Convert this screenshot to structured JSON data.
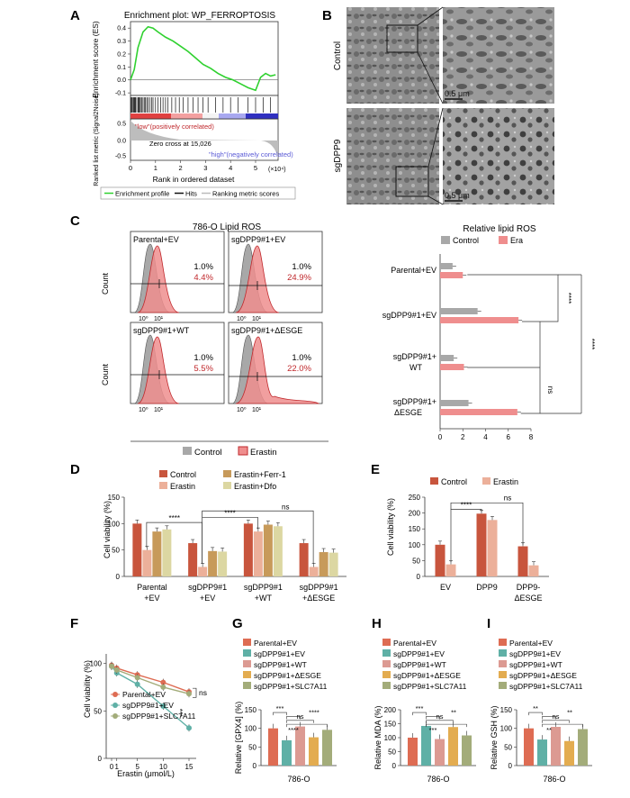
{
  "colors": {
    "control": "#c8553d",
    "erastin": "#ecb09a",
    "ferr1": "#c79a5a",
    "dfo": "#dcd7a2",
    "gray": "#a8a8a8",
    "era": "#ef8e8e",
    "parental": "#de6c53",
    "sgEV": "#5fb0a6",
    "sgWT": "#dc9a92",
    "sgDESGE": "#e3ac50",
    "sgSLC": "#a3ac7a",
    "green": "#2fd12f",
    "red": "#c0282c",
    "blue": "#5b5bd6"
  },
  "panels": {
    "A": "A",
    "B": "B",
    "C": "C",
    "D": "D",
    "E": "E",
    "F": "F",
    "G": "G",
    "H": "H",
    "I": "I"
  },
  "A": {
    "title": "Enrichment plot: WP_FERROPTOSIS",
    "ylabel": "Enrichment score (ES)",
    "metric_label": "Ranked list metric (Signal2Noise)",
    "xlabel": "Rank in ordered dataset",
    "x_multiplier": "(×10⁴)",
    "pos_label": "\"low\"(positively correlated)",
    "neg_label": "\"high\"(negatively correlated)",
    "zero_cross": "Zero cross at 15,026",
    "legend": [
      "Enrichment profile",
      "Hits",
      "Ranking metric scores"
    ],
    "yticks": [
      "0.4",
      "0.3",
      "0.2",
      "0.1",
      "0.0",
      "-0.1"
    ],
    "metric_yticks": [
      "0.5",
      "0.0",
      "-0.5"
    ],
    "xticks": [
      "0",
      "1",
      "2",
      "3",
      "4",
      "5"
    ],
    "es_curve": [
      [
        0.0,
        0.0
      ],
      [
        0.15,
        0.08
      ],
      [
        0.3,
        0.25
      ],
      [
        0.5,
        0.37
      ],
      [
        0.7,
        0.41
      ],
      [
        0.9,
        0.4
      ],
      [
        1.1,
        0.37
      ],
      [
        1.4,
        0.33
      ],
      [
        1.7,
        0.3
      ],
      [
        2.0,
        0.26
      ],
      [
        2.3,
        0.22
      ],
      [
        2.6,
        0.17
      ],
      [
        2.9,
        0.12
      ],
      [
        3.2,
        0.09
      ],
      [
        3.5,
        0.05
      ],
      [
        3.8,
        0.02
      ],
      [
        4.1,
        0.0
      ],
      [
        4.4,
        -0.03
      ],
      [
        4.7,
        -0.06
      ],
      [
        5.0,
        -0.08
      ],
      [
        5.2,
        0.02
      ],
      [
        5.4,
        0.05
      ],
      [
        5.6,
        0.03
      ],
      [
        5.8,
        0.04
      ]
    ],
    "hits": [
      0.02,
      0.05,
      0.08,
      0.12,
      0.15,
      0.18,
      0.2,
      0.25,
      0.3,
      0.33,
      0.36,
      0.4,
      0.45,
      0.5,
      0.55,
      0.6,
      0.65,
      0.7,
      0.78,
      0.85,
      0.9,
      1.0,
      1.1,
      1.2,
      1.3,
      1.4,
      1.5,
      1.65,
      1.8,
      1.95,
      2.1,
      2.3,
      2.5,
      2.7,
      2.9,
      3.1,
      3.4,
      3.7,
      4.0,
      4.3,
      4.7,
      5.0,
      5.3,
      5.6
    ]
  },
  "B": {
    "rows": [
      "Control",
      "sgDPP9"
    ],
    "scale": "0.5 μm"
  },
  "C": {
    "title": "786-O Lipid ROS",
    "count_label": "Count",
    "xticks": [
      "10⁰",
      "10¹"
    ],
    "plots": [
      {
        "label": "Parental+EV",
        "control_pct": "1.0%",
        "erastin_pct": "4.4%"
      },
      {
        "label": "sgDPP9#1+EV",
        "control_pct": "1.0%",
        "erastin_pct": "24.9%"
      },
      {
        "label": "sgDPP9#1+WT",
        "control_pct": "1.0%",
        "erastin_pct": "5.5%"
      },
      {
        "label": "sgDPP9#1+ΔESGE",
        "control_pct": "1.0%",
        "erastin_pct": "22.0%"
      }
    ],
    "legend": [
      "Control",
      "Erastin"
    ],
    "bar_title": "Relative lipid ROS",
    "bar_legend": [
      "Control",
      "Era"
    ],
    "bar_categories": [
      "Parental+EV",
      "sgDPP9#1+EV",
      "sgDPP9#1+",
      "WT",
      "sgDPP9#1+",
      "ΔESGE"
    ],
    "xticks_bar": [
      "0",
      "2",
      "4",
      "6",
      "8"
    ],
    "sig": [
      "****",
      "****",
      "ns"
    ]
  },
  "chart_data": [
    {
      "type": "bar",
      "panel": "C",
      "orientation": "horizontal",
      "title": "Relative lipid ROS",
      "categories": [
        "Parental+EV",
        "sgDPP9#1+EV",
        "sgDPP9#1+WT",
        "sgDPP9#1+ΔESGE"
      ],
      "series": [
        {
          "name": "Control",
          "values": [
            1.1,
            3.3,
            1.2,
            2.5
          ]
        },
        {
          "name": "Era",
          "values": [
            2.0,
            6.9,
            2.1,
            6.8
          ]
        }
      ],
      "xlim": [
        0,
        8
      ]
    },
    {
      "type": "bar",
      "panel": "D",
      "ylabel": "Cell viability (%)",
      "categories": [
        "Parental+EV",
        "sgDPP9#1+EV",
        "sgDPP9#1+WT",
        "sgDPP9#1+ΔESGE"
      ],
      "series": [
        {
          "name": "Control",
          "values": [
            100,
            63,
            100,
            63
          ]
        },
        {
          "name": "Erastin",
          "values": [
            50,
            18,
            85,
            18
          ]
        },
        {
          "name": "Erastin+Ferr-1",
          "values": [
            85,
            48,
            98,
            46
          ]
        },
        {
          "name": "Erastin+Dfo",
          "values": [
            89,
            47,
            95,
            45
          ]
        }
      ],
      "ylim": [
        0,
        150
      ]
    },
    {
      "type": "bar",
      "panel": "E",
      "ylabel": "Cell viability (%)",
      "categories": [
        "EV",
        "DPP9",
        "DPP9-ΔESGE"
      ],
      "series": [
        {
          "name": "Control",
          "values": [
            100,
            198,
            95
          ]
        },
        {
          "name": "Erastin",
          "values": [
            38,
            178,
            35
          ]
        }
      ],
      "ylim": [
        0,
        250
      ]
    },
    {
      "type": "line",
      "panel": "F",
      "ylabel": "Cell viability (%)",
      "xlabel": "Erastin (μmol/L)",
      "x": [
        0,
        1,
        5,
        10,
        15
      ],
      "series": [
        {
          "name": "Parental+EV",
          "values": [
            98,
            95,
            88,
            80,
            70
          ]
        },
        {
          "name": "sgDPP9#1+EV",
          "values": [
            97,
            90,
            78,
            55,
            32
          ]
        },
        {
          "name": "sgDPP9#1+SLC7A11",
          "values": [
            97,
            93,
            85,
            75,
            68
          ]
        }
      ],
      "ylim": [
        0,
        110
      ]
    },
    {
      "type": "bar",
      "panel": "G",
      "ylabel": "Relative [GPX4] (%)",
      "xlabel": "786-O",
      "categories": [
        "Parental+EV",
        "sgDPP9#1+EV",
        "sgDPP9#1+WT",
        "sgDPP9#1+ΔESGE",
        "sgDPP9#1+SLC7A11"
      ],
      "values": [
        100,
        68,
        105,
        76,
        96
      ],
      "ylim": [
        0,
        150
      ]
    },
    {
      "type": "bar",
      "panel": "H",
      "ylabel": "Relative MDA (%)",
      "xlabel": "786-O",
      "categories": [
        "Parental+EV",
        "sgDPP9#1+EV",
        "sgDPP9#1+WT",
        "sgDPP9#1+ΔESGE",
        "sgDPP9#1+SLC7A11"
      ],
      "values": [
        100,
        142,
        95,
        138,
        108
      ],
      "ylim": [
        0,
        200
      ]
    },
    {
      "type": "bar",
      "panel": "I",
      "ylabel": "Relative GSH (%)",
      "xlabel": "786-O",
      "categories": [
        "Parental+EV",
        "sgDPP9#1+EV",
        "sgDPP9#1+WT",
        "sgDPP9#1+ΔESGE",
        "sgDPP9#1+SLC7A11"
      ],
      "values": [
        100,
        70,
        104,
        66,
        98
      ],
      "ylim": [
        0,
        150
      ]
    }
  ],
  "D": {
    "ylabel": "Cell viability (%)",
    "legend": [
      "Control",
      "Erastin",
      "Erastin+Ferr-1",
      "Erastin+Dfo"
    ],
    "cat_lines": [
      [
        "Parental",
        "+EV"
      ],
      [
        "sgDPP9#1",
        "+EV"
      ],
      [
        "sgDPP9#1",
        "+WT"
      ],
      [
        "sgDPP9#1",
        "+ΔESGE"
      ]
    ],
    "yticks": [
      "0",
      "50",
      "100",
      "150"
    ],
    "sig": [
      "****",
      "****",
      "ns"
    ]
  },
  "E": {
    "ylabel": "Cell viability (%)",
    "legend": [
      "Control",
      "Erastin"
    ],
    "cat_lines": [
      [
        "EV",
        ""
      ],
      [
        "DPP9",
        ""
      ],
      [
        "DPP9-",
        "ΔESGE"
      ]
    ],
    "yticks": [
      "0",
      "50",
      "100",
      "150",
      "200",
      "250"
    ],
    "sig": [
      "****",
      "ns"
    ]
  },
  "F": {
    "ylabel": "Cell viability (%)",
    "xlabel": "Erastin (μmol/L)",
    "xticks": [
      "0",
      "1",
      "5",
      "10",
      "15"
    ],
    "yticks": [
      "0",
      "50",
      "100"
    ],
    "legend": [
      "Parental+EV",
      "sgDPP9#1+EV",
      "sgDPP9#1+SLC7A11"
    ],
    "sig": [
      "***",
      "ns"
    ]
  },
  "G": {
    "legend": [
      "Parental+EV",
      "sgDPP9#1+EV",
      "sgDPP9#1+WT",
      "sgDPP9#1+ΔESGE",
      "sgDPP9#1+SLC7A11"
    ],
    "ylabel": "Relative [GPX4] (%)",
    "xlabel": "786-O",
    "yticks": [
      "0",
      "50",
      "100",
      "150"
    ],
    "sig": [
      "***",
      "****",
      "ns",
      "****"
    ]
  },
  "H": {
    "legend": [
      "Parental+EV",
      "sgDPP9#1+EV",
      "sgDPP9#1+WT",
      "sgDPP9#1+ΔESGE",
      "sgDPP9#1+SLC7A11"
    ],
    "ylabel": "Relative MDA (%)",
    "xlabel": "786-O",
    "yticks": [
      "0",
      "50",
      "100",
      "150",
      "200"
    ],
    "sig": [
      "***",
      "***",
      "ns",
      "**"
    ]
  },
  "I": {
    "legend": [
      "Parental+EV",
      "sgDPP9#1+EV",
      "sgDPP9#1+WT",
      "sgDPP9#1+ΔESGE",
      "sgDPP9#1+SLC7A11"
    ],
    "ylabel": "Relative GSH (%)",
    "xlabel": "786-O",
    "yticks": [
      "0",
      "50",
      "100",
      "150"
    ],
    "sig": [
      "**",
      "**",
      "ns",
      "**"
    ]
  }
}
